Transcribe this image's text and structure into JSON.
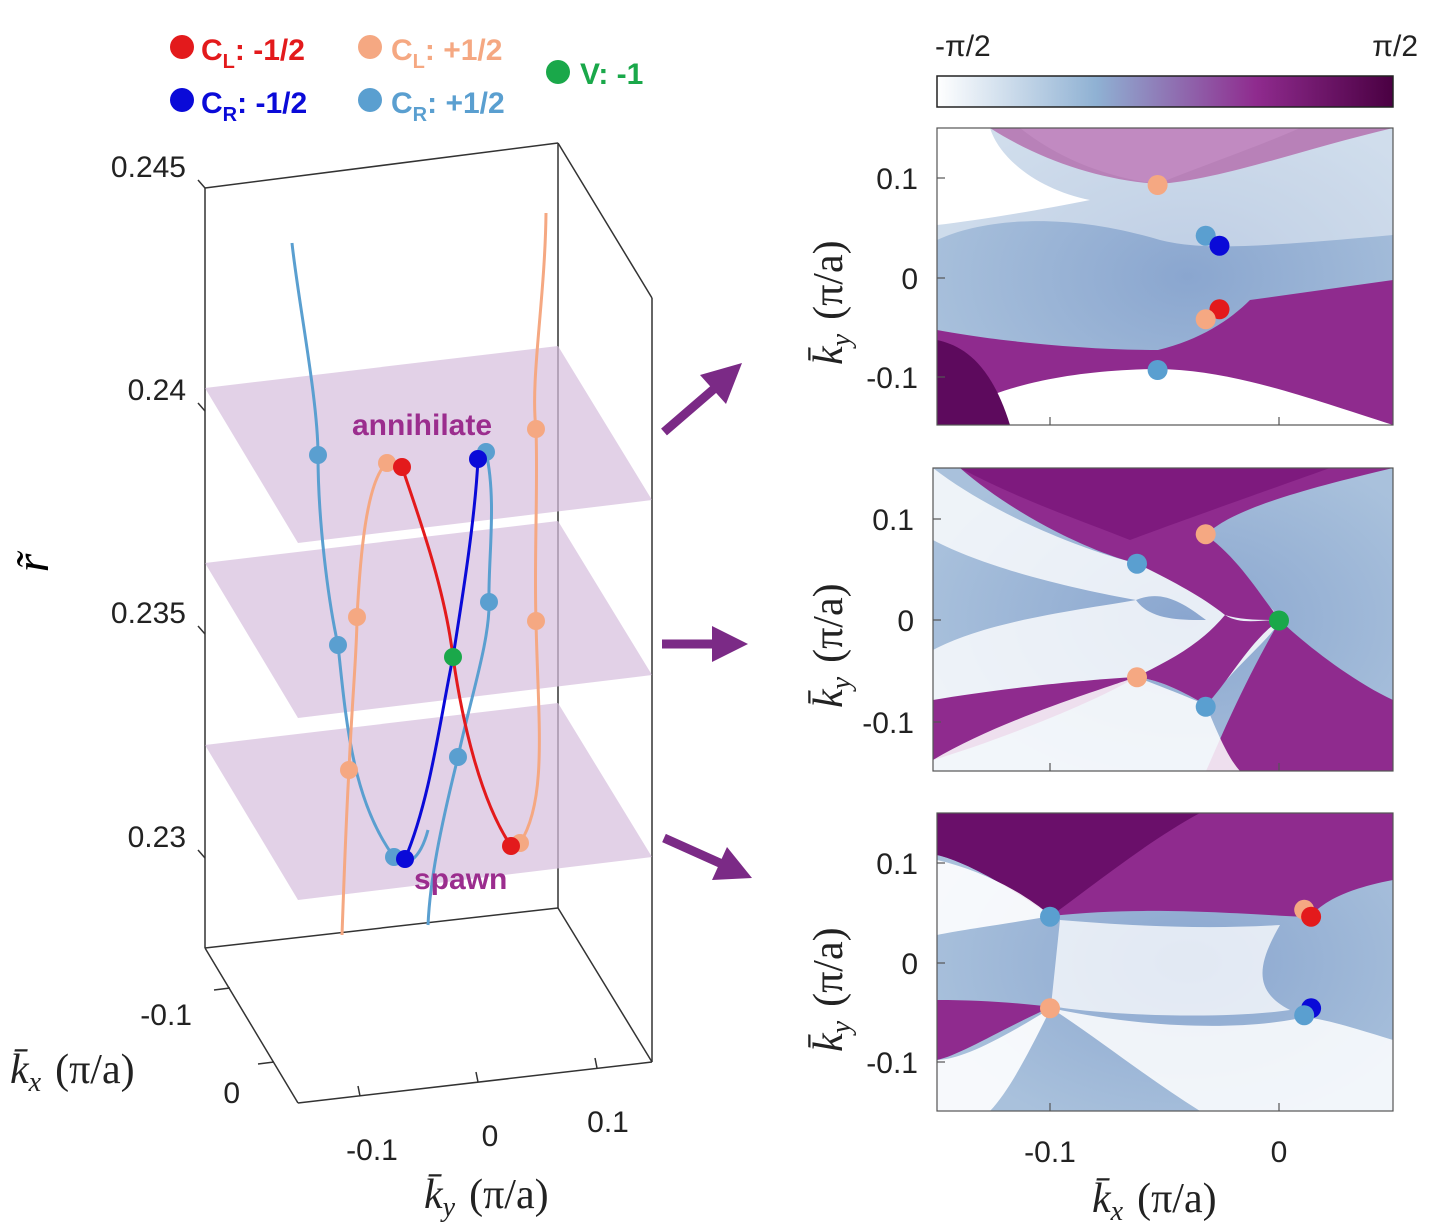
{
  "legend": {
    "items": [
      {
        "label": "C",
        "sub": "L",
        "value": ": -1/2",
        "color": "#e31a1c"
      },
      {
        "label": "C",
        "sub": "L",
        "value": ": +1/2",
        "color": "#f5a882"
      },
      {
        "label": "C",
        "sub": "R",
        "value": ": -1/2",
        "color": "#0a0ad8"
      },
      {
        "label": "C",
        "sub": "R",
        "value": ": +1/2",
        "color": "#5a9fd0"
      },
      {
        "label": "V",
        "sub": "",
        "value": ": -1",
        "color": "#1aa84a"
      }
    ]
  },
  "colorbar": {
    "min_label": "-π/2",
    "max_label": "π/2",
    "colors": [
      "#ffffff",
      "#8fb1d3",
      "#8f2b8e",
      "#4a0042"
    ]
  },
  "left_panel": {
    "z_ticks": [
      "0.245",
      "0.24",
      "0.235",
      "0.23"
    ],
    "z_label": "r̃",
    "kx_ticks": [
      "-0.1",
      "0"
    ],
    "kx_label_main": "k̄",
    "kx_label_sub": "x",
    "kx_label_unit": "(π/a)",
    "ky_ticks": [
      "-0.1",
      "0",
      "0.1"
    ],
    "ky_label_main": "k̄",
    "ky_label_sub": "y",
    "ky_label_unit": "(π/a)",
    "annotations": {
      "top": "annihilate",
      "bottom": "spawn"
    }
  },
  "right_panels": {
    "ky_ticks": [
      "0.1",
      "0",
      "-0.1"
    ],
    "kx_ticks": [
      "-0.1",
      "0"
    ],
    "ylabel_main": "k̄",
    "ylabel_sub": "y",
    "ylabel_unit": "(π/a)",
    "xlabel_main": "k̄",
    "xlabel_sub": "x",
    "xlabel_unit": "(π/a)",
    "panels": [
      {
        "name": "top",
        "points": [
          {
            "kx": -0.053,
            "ky": 0.093,
            "color": "#f5a882"
          },
          {
            "kx": -0.032,
            "ky": 0.042,
            "color": "#5a9fd0"
          },
          {
            "kx": -0.026,
            "ky": 0.032,
            "color": "#0a0ad8"
          },
          {
            "kx": -0.026,
            "ky": -0.032,
            "color": "#e31a1c"
          },
          {
            "kx": -0.032,
            "ky": -0.042,
            "color": "#f5a882"
          },
          {
            "kx": -0.053,
            "ky": -0.093,
            "color": "#5a9fd0"
          }
        ]
      },
      {
        "name": "middle",
        "points": [
          {
            "kx": -0.032,
            "ky": 0.085,
            "color": "#f5a882"
          },
          {
            "kx": -0.062,
            "ky": 0.056,
            "color": "#5a9fd0"
          },
          {
            "kx": 0.0,
            "ky": 0.0,
            "color": "#1aa84a"
          },
          {
            "kx": -0.062,
            "ky": -0.056,
            "color": "#f5a882"
          },
          {
            "kx": -0.032,
            "ky": -0.085,
            "color": "#5a9fd0"
          }
        ]
      },
      {
        "name": "bottom",
        "points": [
          {
            "kx": -0.1,
            "ky": 0.046,
            "color": "#5a9fd0"
          },
          {
            "kx": 0.011,
            "ky": 0.053,
            "color": "#f5a882"
          },
          {
            "kx": 0.014,
            "ky": 0.046,
            "color": "#e31a1c"
          },
          {
            "kx": -0.1,
            "ky": -0.046,
            "color": "#f5a882"
          },
          {
            "kx": 0.014,
            "ky": -0.046,
            "color": "#0a0ad8"
          },
          {
            "kx": 0.011,
            "ky": -0.053,
            "color": "#5a9fd0"
          }
        ]
      }
    ]
  }
}
